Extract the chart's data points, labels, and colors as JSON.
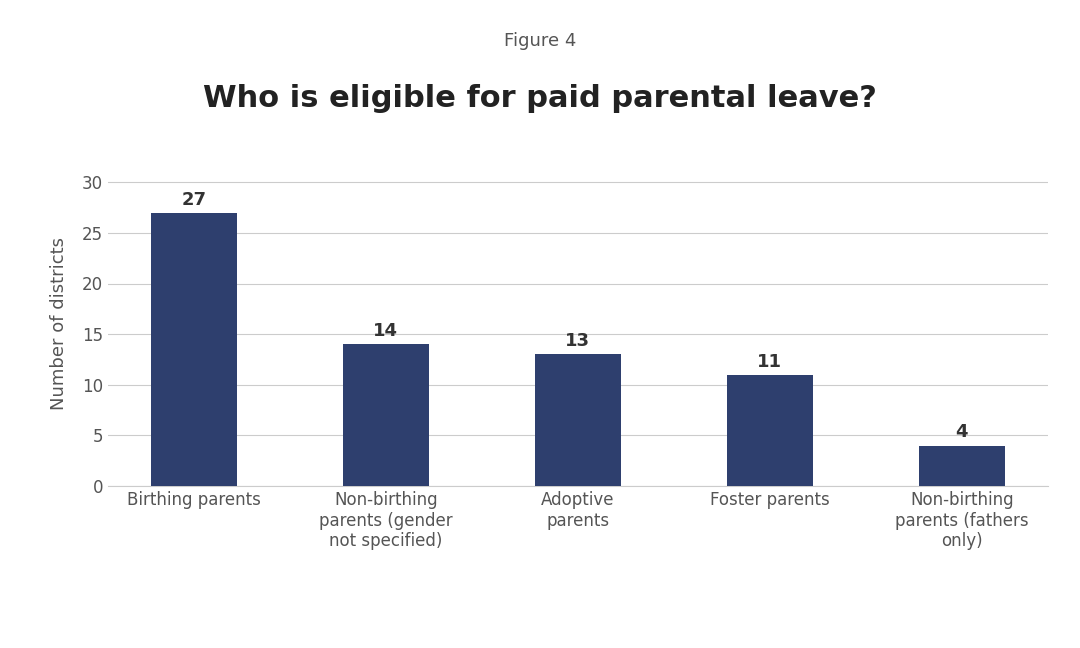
{
  "figure_label": "Figure 4",
  "title": "Who is eligible for paid parental leave?",
  "categories": [
    "Birthing parents",
    "Non-birthing\nparents (gender\nnot specified)",
    "Adoptive\nparents",
    "Foster parents",
    "Non-birthing\nparents (fathers\nonly)"
  ],
  "values": [
    27,
    14,
    13,
    11,
    4
  ],
  "bar_color": "#2E3F6E",
  "ylabel": "Number of districts",
  "ylim": [
    0,
    32
  ],
  "yticks": [
    0,
    5,
    10,
    15,
    20,
    25,
    30
  ],
  "background_color": "#ffffff",
  "figure_label_fontsize": 13,
  "title_fontsize": 22,
  "tick_label_fontsize": 12,
  "value_fontsize": 13,
  "ylabel_fontsize": 13,
  "bar_width": 0.45
}
